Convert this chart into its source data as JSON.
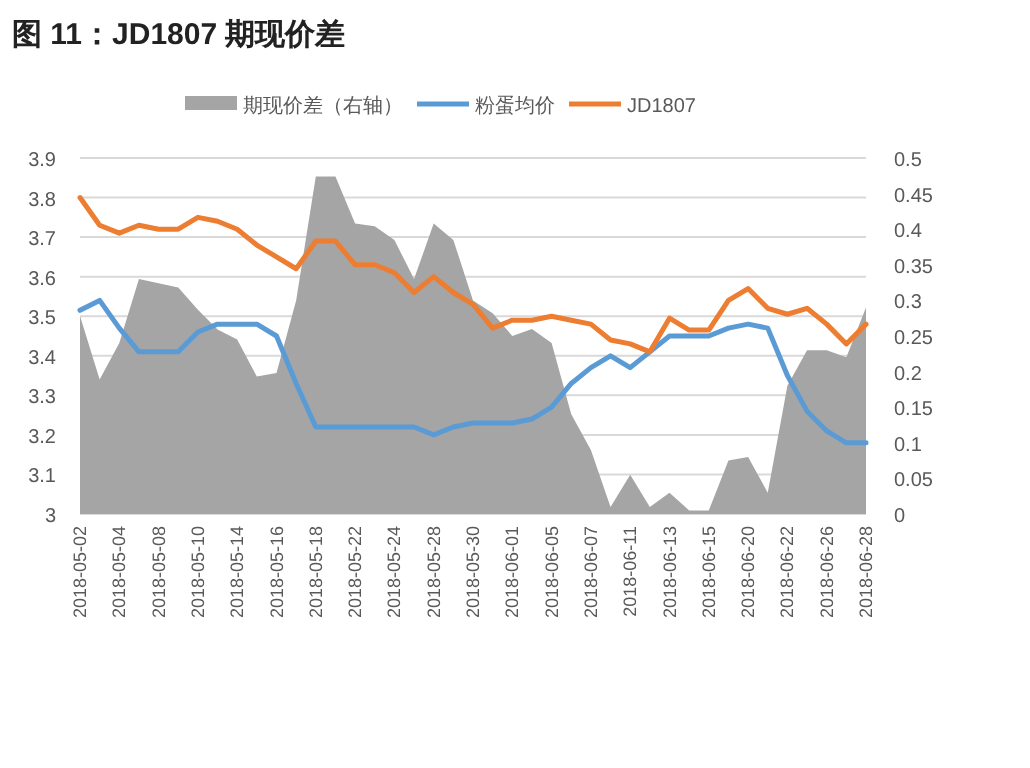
{
  "chart_data": {
    "type": "line",
    "title": "图 11：JD1807 期现价差",
    "categories": [
      "2018-05-02",
      null,
      "2018-05-04",
      null,
      "2018-05-08",
      null,
      "2018-05-10",
      null,
      "2018-05-14",
      null,
      "2018-05-16",
      null,
      "2018-05-18",
      null,
      "2018-05-22",
      null,
      "2018-05-24",
      null,
      "2018-05-28",
      null,
      "2018-05-30",
      null,
      "2018-06-01",
      null,
      "2018-06-05",
      null,
      "2018-06-07",
      null,
      "2018-06-11",
      null,
      "2018-06-13",
      null,
      "2018-06-15",
      null,
      "2018-06-20",
      null,
      "2018-06-22",
      null,
      "2018-06-26",
      null,
      "2018-06-28"
    ],
    "series": [
      {
        "name": "期现价差（右轴）",
        "type": "area",
        "axis": "y2",
        "color": "#a5a5a5",
        "values": [
          0.278,
          0.189,
          0.24,
          0.33,
          0.324,
          0.318,
          0.287,
          0.259,
          0.245,
          0.193,
          0.198,
          0.3,
          0.474,
          0.474,
          0.408,
          0.404,
          0.385,
          0.33,
          0.408,
          0.385,
          0.3,
          0.282,
          0.25,
          0.26,
          0.24,
          0.14,
          0.09,
          0.01,
          0.055,
          0.01,
          0.03,
          0.005,
          0.005,
          0.075,
          0.08,
          0.03,
          0.18,
          0.23,
          0.23,
          0.22,
          0.29
        ]
      },
      {
        "name": "粉蛋均价",
        "color": "#5b9bd5",
        "values": [
          3.515,
          3.54,
          3.47,
          3.41,
          3.41,
          3.41,
          3.46,
          3.48,
          3.48,
          3.48,
          3.45,
          3.33,
          3.22,
          3.22,
          3.22,
          3.22,
          3.22,
          3.22,
          3.2,
          3.22,
          3.23,
          3.23,
          3.23,
          3.24,
          3.27,
          3.33,
          3.37,
          3.4,
          3.37,
          3.41,
          3.45,
          3.45,
          3.45,
          3.47,
          3.48,
          3.47,
          3.35,
          3.26,
          3.21,
          3.18,
          3.18
        ]
      },
      {
        "name": "JD1807",
        "color": "#ed7d31",
        "values": [
          3.8,
          3.73,
          3.71,
          3.73,
          3.72,
          3.72,
          3.75,
          3.74,
          3.72,
          3.68,
          3.65,
          3.62,
          3.69,
          3.69,
          3.63,
          3.63,
          3.61,
          3.56,
          3.6,
          3.56,
          3.53,
          3.47,
          3.49,
          3.49,
          3.5,
          3.49,
          3.48,
          3.44,
          3.43,
          3.41,
          3.495,
          3.465,
          3.465,
          3.54,
          3.57,
          3.52,
          3.505,
          3.52,
          3.48,
          3.43,
          3.48
        ]
      }
    ],
    "ylim": [
      3,
      3.9
    ],
    "yticks": [
      3,
      3.1,
      3.2,
      3.3,
      3.4,
      3.5,
      3.6,
      3.7,
      3.8,
      3.9
    ],
    "y2lim": [
      0,
      0.5
    ],
    "y2ticks": [
      0,
      0.05,
      0.1,
      0.15,
      0.2,
      0.25,
      0.3,
      0.35,
      0.4,
      0.45,
      0.5
    ],
    "grid": "y",
    "legend": "top",
    "marker": "none",
    "line_style": "solid"
  }
}
